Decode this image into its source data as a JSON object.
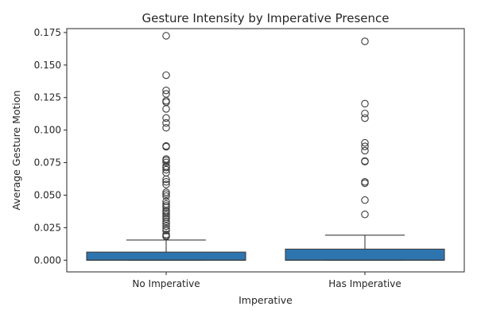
{
  "chart_data": {
    "type": "box",
    "title": "Gesture Intensity by Imperative Presence",
    "xlabel": "Imperative",
    "ylabel": "Average Gesture Motion",
    "ylim": [
      -0.009,
      0.178
    ],
    "yticks": [
      0.0,
      0.025,
      0.05,
      0.075,
      0.1,
      0.125,
      0.15,
      0.175
    ],
    "ytick_labels": [
      "0.000",
      "0.025",
      "0.050",
      "0.075",
      "0.100",
      "0.125",
      "0.150",
      "0.175"
    ],
    "categories": [
      "No Imperative",
      "Has Imperative"
    ],
    "box_color": "#2e75b0",
    "line_color": "#3d3d3d",
    "grid": false,
    "boxes": [
      {
        "category": "No Imperative",
        "whisker_low": 0.0,
        "q1": 0.0,
        "median": 0.0,
        "q3": 0.0062,
        "whisker_high": 0.0155,
        "outliers": [
          0.1725,
          0.1422,
          0.1305,
          0.1278,
          0.1225,
          0.1215,
          0.1163,
          0.1093,
          0.1055,
          0.1018,
          0.0878,
          0.0872,
          0.0778,
          0.0768,
          0.0752,
          0.0722,
          0.0712,
          0.0695,
          0.0672,
          0.0622,
          0.0602,
          0.0582,
          0.0522,
          0.0508,
          0.0492,
          0.0452,
          0.0432,
          0.0418,
          0.0405,
          0.0382,
          0.0372,
          0.0358,
          0.0345,
          0.0332,
          0.0318,
          0.0298,
          0.0282,
          0.0262,
          0.0242,
          0.0228,
          0.0198,
          0.0188,
          0.0182
        ]
      },
      {
        "category": "Has Imperative",
        "whisker_low": 0.0,
        "q1": 0.0,
        "median": 0.0,
        "q3": 0.0085,
        "whisker_high": 0.0192,
        "outliers": [
          0.1682,
          0.1203,
          0.1128,
          0.1092,
          0.0902,
          0.0875,
          0.0842,
          0.0762,
          0.0758,
          0.0602,
          0.0592,
          0.0462,
          0.0352
        ]
      }
    ]
  }
}
